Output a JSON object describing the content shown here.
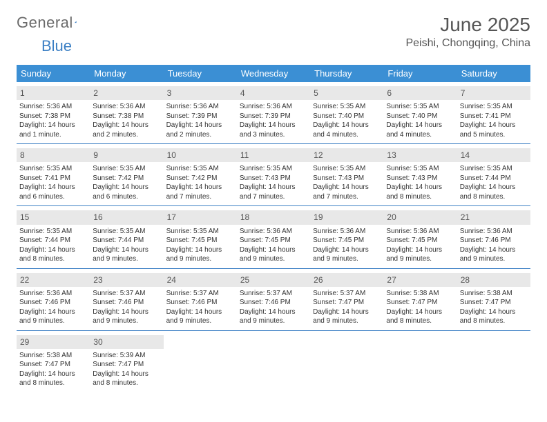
{
  "logo": {
    "text1": "General",
    "text2": "Blue"
  },
  "title": "June 2025",
  "location": "Peishi, Chongqing, China",
  "colors": {
    "header_bg": "#3b8fd4",
    "header_text": "#ffffff",
    "rule": "#3b7fc4",
    "daybg": "#e8e8e8",
    "logo_gray": "#6a6a6a",
    "logo_blue": "#3b7fc4"
  },
  "day_headers": [
    "Sunday",
    "Monday",
    "Tuesday",
    "Wednesday",
    "Thursday",
    "Friday",
    "Saturday"
  ],
  "weeks": [
    [
      {
        "n": "1",
        "sr": "Sunrise: 5:36 AM",
        "ss": "Sunset: 7:38 PM",
        "dl1": "Daylight: 14 hours",
        "dl2": "and 1 minute."
      },
      {
        "n": "2",
        "sr": "Sunrise: 5:36 AM",
        "ss": "Sunset: 7:38 PM",
        "dl1": "Daylight: 14 hours",
        "dl2": "and 2 minutes."
      },
      {
        "n": "3",
        "sr": "Sunrise: 5:36 AM",
        "ss": "Sunset: 7:39 PM",
        "dl1": "Daylight: 14 hours",
        "dl2": "and 2 minutes."
      },
      {
        "n": "4",
        "sr": "Sunrise: 5:36 AM",
        "ss": "Sunset: 7:39 PM",
        "dl1": "Daylight: 14 hours",
        "dl2": "and 3 minutes."
      },
      {
        "n": "5",
        "sr": "Sunrise: 5:35 AM",
        "ss": "Sunset: 7:40 PM",
        "dl1": "Daylight: 14 hours",
        "dl2": "and 4 minutes."
      },
      {
        "n": "6",
        "sr": "Sunrise: 5:35 AM",
        "ss": "Sunset: 7:40 PM",
        "dl1": "Daylight: 14 hours",
        "dl2": "and 4 minutes."
      },
      {
        "n": "7",
        "sr": "Sunrise: 5:35 AM",
        "ss": "Sunset: 7:41 PM",
        "dl1": "Daylight: 14 hours",
        "dl2": "and 5 minutes."
      }
    ],
    [
      {
        "n": "8",
        "sr": "Sunrise: 5:35 AM",
        "ss": "Sunset: 7:41 PM",
        "dl1": "Daylight: 14 hours",
        "dl2": "and 6 minutes."
      },
      {
        "n": "9",
        "sr": "Sunrise: 5:35 AM",
        "ss": "Sunset: 7:42 PM",
        "dl1": "Daylight: 14 hours",
        "dl2": "and 6 minutes."
      },
      {
        "n": "10",
        "sr": "Sunrise: 5:35 AM",
        "ss": "Sunset: 7:42 PM",
        "dl1": "Daylight: 14 hours",
        "dl2": "and 7 minutes."
      },
      {
        "n": "11",
        "sr": "Sunrise: 5:35 AM",
        "ss": "Sunset: 7:43 PM",
        "dl1": "Daylight: 14 hours",
        "dl2": "and 7 minutes."
      },
      {
        "n": "12",
        "sr": "Sunrise: 5:35 AM",
        "ss": "Sunset: 7:43 PM",
        "dl1": "Daylight: 14 hours",
        "dl2": "and 7 minutes."
      },
      {
        "n": "13",
        "sr": "Sunrise: 5:35 AM",
        "ss": "Sunset: 7:43 PM",
        "dl1": "Daylight: 14 hours",
        "dl2": "and 8 minutes."
      },
      {
        "n": "14",
        "sr": "Sunrise: 5:35 AM",
        "ss": "Sunset: 7:44 PM",
        "dl1": "Daylight: 14 hours",
        "dl2": "and 8 minutes."
      }
    ],
    [
      {
        "n": "15",
        "sr": "Sunrise: 5:35 AM",
        "ss": "Sunset: 7:44 PM",
        "dl1": "Daylight: 14 hours",
        "dl2": "and 8 minutes."
      },
      {
        "n": "16",
        "sr": "Sunrise: 5:35 AM",
        "ss": "Sunset: 7:44 PM",
        "dl1": "Daylight: 14 hours",
        "dl2": "and 9 minutes."
      },
      {
        "n": "17",
        "sr": "Sunrise: 5:35 AM",
        "ss": "Sunset: 7:45 PM",
        "dl1": "Daylight: 14 hours",
        "dl2": "and 9 minutes."
      },
      {
        "n": "18",
        "sr": "Sunrise: 5:36 AM",
        "ss": "Sunset: 7:45 PM",
        "dl1": "Daylight: 14 hours",
        "dl2": "and 9 minutes."
      },
      {
        "n": "19",
        "sr": "Sunrise: 5:36 AM",
        "ss": "Sunset: 7:45 PM",
        "dl1": "Daylight: 14 hours",
        "dl2": "and 9 minutes."
      },
      {
        "n": "20",
        "sr": "Sunrise: 5:36 AM",
        "ss": "Sunset: 7:45 PM",
        "dl1": "Daylight: 14 hours",
        "dl2": "and 9 minutes."
      },
      {
        "n": "21",
        "sr": "Sunrise: 5:36 AM",
        "ss": "Sunset: 7:46 PM",
        "dl1": "Daylight: 14 hours",
        "dl2": "and 9 minutes."
      }
    ],
    [
      {
        "n": "22",
        "sr": "Sunrise: 5:36 AM",
        "ss": "Sunset: 7:46 PM",
        "dl1": "Daylight: 14 hours",
        "dl2": "and 9 minutes."
      },
      {
        "n": "23",
        "sr": "Sunrise: 5:37 AM",
        "ss": "Sunset: 7:46 PM",
        "dl1": "Daylight: 14 hours",
        "dl2": "and 9 minutes."
      },
      {
        "n": "24",
        "sr": "Sunrise: 5:37 AM",
        "ss": "Sunset: 7:46 PM",
        "dl1": "Daylight: 14 hours",
        "dl2": "and 9 minutes."
      },
      {
        "n": "25",
        "sr": "Sunrise: 5:37 AM",
        "ss": "Sunset: 7:46 PM",
        "dl1": "Daylight: 14 hours",
        "dl2": "and 9 minutes."
      },
      {
        "n": "26",
        "sr": "Sunrise: 5:37 AM",
        "ss": "Sunset: 7:47 PM",
        "dl1": "Daylight: 14 hours",
        "dl2": "and 9 minutes."
      },
      {
        "n": "27",
        "sr": "Sunrise: 5:38 AM",
        "ss": "Sunset: 7:47 PM",
        "dl1": "Daylight: 14 hours",
        "dl2": "and 8 minutes."
      },
      {
        "n": "28",
        "sr": "Sunrise: 5:38 AM",
        "ss": "Sunset: 7:47 PM",
        "dl1": "Daylight: 14 hours",
        "dl2": "and 8 minutes."
      }
    ],
    [
      {
        "n": "29",
        "sr": "Sunrise: 5:38 AM",
        "ss": "Sunset: 7:47 PM",
        "dl1": "Daylight: 14 hours",
        "dl2": "and 8 minutes."
      },
      {
        "n": "30",
        "sr": "Sunrise: 5:39 AM",
        "ss": "Sunset: 7:47 PM",
        "dl1": "Daylight: 14 hours",
        "dl2": "and 8 minutes."
      },
      null,
      null,
      null,
      null,
      null
    ]
  ]
}
